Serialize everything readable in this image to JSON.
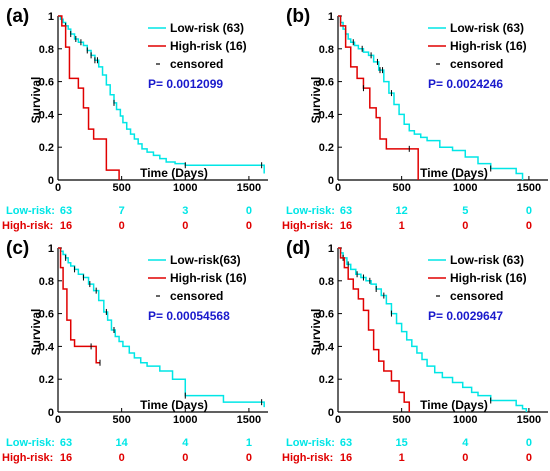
{
  "colors": {
    "low": "#00e6e6",
    "high": "#e00000",
    "pvalue": "#1a1acc",
    "censor": "#000000"
  },
  "chart_data": [
    {
      "panel": "(a)",
      "type": "line",
      "xlabel": "Time (Days)",
      "ylabel": "Survival",
      "xlim": [
        0,
        1650
      ],
      "ylim": [
        0,
        1
      ],
      "xticks": [
        0,
        500,
        1000,
        1500
      ],
      "yticks": [
        0,
        0.2,
        0.4,
        0.6,
        0.8,
        1
      ],
      "legend": [
        "Low-risk (63)",
        "High-risk (16)",
        "censored"
      ],
      "pvalue": "P= 0.0012099",
      "series": [
        {
          "name": "Low-risk (63)",
          "color": "#00e6e6",
          "x": [
            0,
            20,
            40,
            60,
            80,
            100,
            130,
            160,
            200,
            230,
            260,
            290,
            320,
            350,
            380,
            410,
            440,
            460,
            490,
            510,
            540,
            570,
            600,
            630,
            660,
            700,
            750,
            800,
            850,
            920,
            1000,
            1050,
            1620
          ],
          "y": [
            1,
            0.98,
            0.96,
            0.94,
            0.92,
            0.89,
            0.86,
            0.84,
            0.82,
            0.79,
            0.76,
            0.73,
            0.69,
            0.64,
            0.58,
            0.52,
            0.47,
            0.43,
            0.39,
            0.35,
            0.31,
            0.28,
            0.25,
            0.22,
            0.19,
            0.17,
            0.15,
            0.13,
            0.11,
            0.1,
            0.09,
            0.09,
            0.04
          ],
          "censored_x": [
            60,
            100,
            140,
            180,
            230,
            260,
            290,
            310,
            440,
            1000,
            1600
          ]
        },
        {
          "name": "High-risk (16)",
          "color": "#e00000",
          "x": [
            0,
            30,
            60,
            90,
            160,
            200,
            240,
            280,
            380,
            470,
            480
          ],
          "y": [
            1,
            0.94,
            0.81,
            0.62,
            0.56,
            0.44,
            0.31,
            0.25,
            0.06,
            0.06,
            0
          ],
          "censored_x": []
        }
      ],
      "risk_table": {
        "labels": [
          "Low-risk:",
          "High-risk:"
        ],
        "time_points": [
          0,
          500,
          1000,
          1500
        ],
        "low": [
          "63",
          "7",
          "3",
          "0"
        ],
        "high": [
          "16",
          "0",
          "0",
          "0"
        ]
      }
    },
    {
      "panel": "(b)",
      "type": "line",
      "xlabel": "Time (Days)",
      "ylabel": "Survival",
      "xlim": [
        0,
        1650
      ],
      "ylim": [
        0,
        1
      ],
      "xticks": [
        0,
        500,
        1000,
        1500
      ],
      "yticks": [
        0,
        0.2,
        0.4,
        0.6,
        0.8,
        1
      ],
      "legend": [
        "Low-risk (63)",
        "High-risk (16)",
        "censored"
      ],
      "pvalue": "P= 0.0024246",
      "series": [
        {
          "name": "Low-risk (63)",
          "color": "#00e6e6",
          "x": [
            0,
            20,
            40,
            60,
            80,
            100,
            130,
            160,
            200,
            240,
            280,
            320,
            360,
            400,
            440,
            480,
            520,
            560,
            600,
            650,
            700,
            800,
            900,
            1000,
            1100,
            1200,
            1400,
            1450
          ],
          "y": [
            1,
            0.96,
            0.92,
            0.89,
            0.86,
            0.84,
            0.82,
            0.8,
            0.78,
            0.76,
            0.72,
            0.67,
            0.6,
            0.53,
            0.46,
            0.4,
            0.34,
            0.3,
            0.28,
            0.26,
            0.24,
            0.2,
            0.18,
            0.14,
            0.1,
            0.07,
            0.04,
            0
          ],
          "censored_x": [
            60,
            120,
            190,
            260,
            310,
            330,
            350,
            420,
            1200
          ]
        },
        {
          "name": "High-risk (16)",
          "color": "#e00000",
          "x": [
            0,
            20,
            60,
            100,
            150,
            200,
            250,
            300,
            330,
            380,
            450,
            600,
            630
          ],
          "y": [
            1,
            0.94,
            0.81,
            0.69,
            0.62,
            0.56,
            0.44,
            0.38,
            0.25,
            0.19,
            0.19,
            0.19,
            0
          ],
          "censored_x": [
            200,
            560
          ]
        }
      ],
      "risk_table": {
        "labels": [
          "Low-risk:",
          "High-risk:"
        ],
        "time_points": [
          0,
          500,
          1000,
          1500
        ],
        "low": [
          "63",
          "12",
          "5",
          "0"
        ],
        "high": [
          "16",
          "1",
          "0",
          "0"
        ]
      }
    },
    {
      "panel": "(c)",
      "type": "line",
      "xlabel": "Time (Days)",
      "ylabel": "Survival",
      "xlim": [
        0,
        1650
      ],
      "ylim": [
        0,
        1
      ],
      "xticks": [
        0,
        500,
        1000,
        1500
      ],
      "yticks": [
        0,
        0.2,
        0.4,
        0.6,
        0.8,
        1
      ],
      "legend": [
        "Low-risk(63)",
        "High-risk (16)",
        "censored"
      ],
      "pvalue": "P= 0.00054568",
      "series": [
        {
          "name": "Low-risk(63)",
          "color": "#00e6e6",
          "x": [
            0,
            20,
            40,
            60,
            80,
            100,
            130,
            160,
            200,
            240,
            280,
            320,
            360,
            390,
            420,
            450,
            480,
            510,
            560,
            600,
            650,
            700,
            800,
            900,
            1000,
            1300,
            1620
          ],
          "y": [
            1,
            0.98,
            0.96,
            0.94,
            0.91,
            0.89,
            0.87,
            0.84,
            0.82,
            0.78,
            0.74,
            0.68,
            0.61,
            0.56,
            0.5,
            0.46,
            0.43,
            0.4,
            0.36,
            0.33,
            0.3,
            0.28,
            0.25,
            0.2,
            0.1,
            0.06,
            0.03
          ],
          "censored_x": [
            60,
            130,
            200,
            250,
            300,
            380,
            440,
            1000,
            1600
          ]
        },
        {
          "name": "High-risk (16)",
          "color": "#e00000",
          "x": [
            0,
            20,
            40,
            70,
            100,
            130,
            250,
            300,
            330
          ],
          "y": [
            1,
            0.88,
            0.75,
            0.56,
            0.44,
            0.4,
            0.4,
            0.3,
            0.3
          ],
          "censored_x": [
            260,
            330
          ]
        }
      ],
      "risk_table": {
        "labels": [
          "Low-risk:",
          "High-risk:"
        ],
        "time_points": [
          0,
          500,
          1000,
          1500
        ],
        "low": [
          "63",
          "14",
          "4",
          "1"
        ],
        "high": [
          "16",
          "0",
          "0",
          "0"
        ]
      }
    },
    {
      "panel": "(d)",
      "type": "line",
      "xlabel": "Time (Days)",
      "ylabel": "Survival",
      "xlim": [
        0,
        1650
      ],
      "ylim": [
        0,
        1
      ],
      "xticks": [
        0,
        500,
        1000,
        1500
      ],
      "yticks": [
        0,
        0.2,
        0.4,
        0.6,
        0.8,
        1
      ],
      "legend": [
        "Low-risk (63)",
        "High-risk (16)",
        "censored"
      ],
      "pvalue": "P= 0.0029647",
      "series": [
        {
          "name": "Low-risk (63)",
          "color": "#00e6e6",
          "x": [
            0,
            20,
            40,
            70,
            100,
            140,
            180,
            220,
            260,
            300,
            340,
            380,
            420,
            460,
            500,
            540,
            580,
            620,
            660,
            700,
            760,
            820,
            900,
            980,
            1050,
            1100,
            1200,
            1400,
            1450,
            1480
          ],
          "y": [
            1,
            0.97,
            0.94,
            0.9,
            0.87,
            0.84,
            0.82,
            0.8,
            0.78,
            0.75,
            0.71,
            0.66,
            0.6,
            0.54,
            0.49,
            0.44,
            0.4,
            0.36,
            0.32,
            0.28,
            0.24,
            0.21,
            0.18,
            0.15,
            0.12,
            0.1,
            0.07,
            0.04,
            0.02,
            0
          ],
          "censored_x": [
            40,
            80,
            150,
            200,
            250,
            300,
            360,
            420,
            1200
          ]
        },
        {
          "name": "High-risk (16)",
          "color": "#e00000",
          "x": [
            0,
            20,
            50,
            80,
            120,
            160,
            200,
            240,
            280,
            320,
            360,
            420,
            480,
            520,
            560
          ],
          "y": [
            1,
            0.94,
            0.88,
            0.81,
            0.75,
            0.69,
            0.62,
            0.5,
            0.38,
            0.31,
            0.25,
            0.19,
            0.12,
            0.06,
            0
          ],
          "censored_x": []
        }
      ],
      "risk_table": {
        "labels": [
          "Low-risk:",
          "High-risk:"
        ],
        "time_points": [
          0,
          500,
          1000,
          1500
        ],
        "low": [
          "63",
          "15",
          "4",
          "0"
        ],
        "high": [
          "16",
          "1",
          "0",
          "0"
        ]
      }
    }
  ]
}
